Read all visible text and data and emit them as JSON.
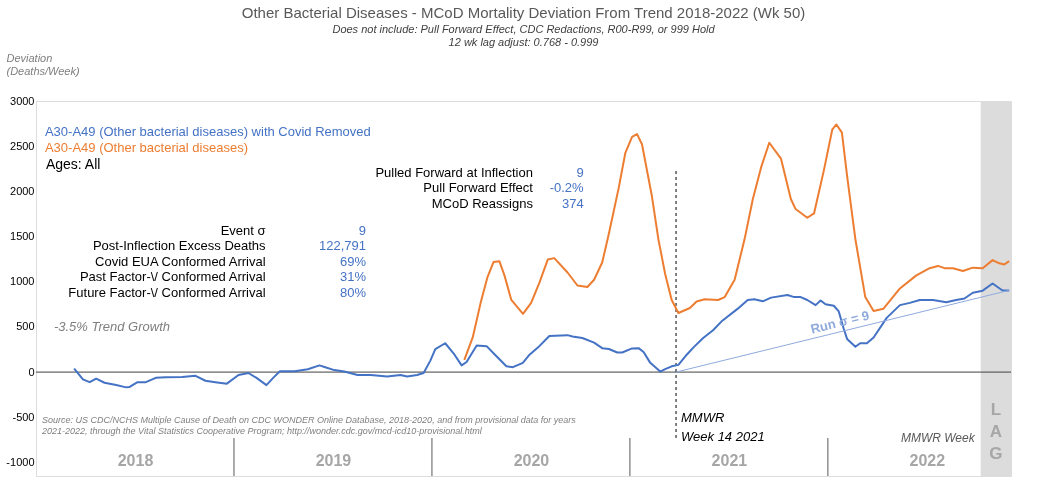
{
  "chart_data": {
    "type": "line",
    "title": "Other Bacterial Diseases - MCoD Mortality Deviation From Trend  2018-2022 (Wk 50)",
    "subtitle": "Does not include: Pull Forward Effect,  CDC Redactions, R00-R99, or 999 Hold\n12 wk lag adjust: 0.768 - 0.999",
    "xlabel": "MMWR Week",
    "ylabel": "Deviation\n(Deaths/Week)",
    "xlim": [
      2018,
      2022.925
    ],
    "xticks": [
      {
        "value": 2018.5,
        "label": "2018"
      },
      {
        "value": 2019.5,
        "label": "2019"
      },
      {
        "value": 2020.5,
        "label": "2020"
      },
      {
        "value": 2021.5,
        "label": "2021"
      },
      {
        "value": 2022.5,
        "label": "2022"
      }
    ],
    "ylim": [
      -1150,
      3000
    ],
    "yticks": [
      -1000,
      -500,
      0,
      500,
      1000,
      1500,
      2000,
      2500,
      3000
    ],
    "grid": false,
    "series": [
      {
        "name": "A30-A49 (Other bacterial diseases) with Covid Removed",
        "color": "#4472c4",
        "x": [
          2018.195,
          2018.237,
          2018.271,
          2018.304,
          2018.346,
          2018.405,
          2018.455,
          2018.471,
          2018.513,
          2018.555,
          2018.605,
          2018.655,
          2018.738,
          2018.806,
          2018.856,
          2018.906,
          2018.964,
          2019.023,
          2019.073,
          2019.114,
          2019.164,
          2019.198,
          2019.232,
          2019.307,
          2019.373,
          2019.432,
          2019.457,
          2019.507,
          2019.557,
          2019.624,
          2019.691,
          2019.774,
          2019.841,
          2019.875,
          2019.925,
          2019.958,
          2019.992,
          2020.017,
          2020.067,
          2020.109,
          2020.15,
          2020.175,
          2020.226,
          2020.276,
          2020.326,
          2020.376,
          2020.409,
          2020.459,
          2020.493,
          2020.535,
          2020.593,
          2020.685,
          2020.71,
          2020.76,
          2020.819,
          2020.86,
          2020.894,
          2020.936,
          2020.961,
          2021.011,
          2021.044,
          2021.069,
          2021.103,
          2021.153,
          2021.178,
          2021.211,
          2021.245,
          2021.287,
          2021.32,
          2021.37,
          2021.42,
          2021.462,
          2021.545,
          2021.595,
          2021.629,
          2021.671,
          2021.713,
          2021.796,
          2021.83,
          2021.863,
          2021.896,
          2021.938,
          2021.963,
          2021.988,
          2022.03,
          2022.055,
          2022.08,
          2022.097,
          2022.139,
          2022.163,
          2022.197,
          2022.231,
          2022.297,
          2022.364,
          2022.414,
          2022.464,
          2022.531,
          2022.598,
          2022.648,
          2022.69,
          2022.732,
          2022.782,
          2022.832,
          2022.882,
          2022.912
        ],
        "values": [
          32,
          -80,
          -112,
          -73,
          -118,
          -144,
          -169,
          -166,
          -112,
          -112,
          -64,
          -58,
          -54,
          -41,
          -96,
          -112,
          -128,
          -32,
          -10,
          -64,
          -144,
          -64,
          10,
          10,
          32,
          74,
          57,
          22,
          6,
          -32,
          -32,
          -48,
          -32,
          -48,
          -32,
          -10,
          127,
          255,
          319,
          208,
          74,
          112,
          294,
          287,
          176,
          64,
          54,
          102,
          192,
          271,
          399,
          409,
          393,
          377,
          326,
          265,
          255,
          217,
          217,
          262,
          265,
          223,
          102,
          6,
          32,
          64,
          80,
          192,
          271,
          377,
          463,
          559,
          702,
          798,
          805,
          783,
          824,
          853,
          830,
          830,
          798,
          741,
          792,
          750,
          734,
          671,
          479,
          367,
          281,
          319,
          319,
          383,
          600,
          741,
          766,
          798,
          798,
          773,
          798,
          814,
          878,
          901,
          980,
          903,
          903
        ]
      },
      {
        "name": "A30-A49 (Other bacterial diseases)",
        "color": "#ed7d31",
        "x": [
          2020.165,
          2020.206,
          2020.246,
          2020.281,
          2020.311,
          2020.341,
          2020.366,
          2020.401,
          2020.46,
          2020.501,
          2020.543,
          2020.585,
          2020.618,
          2020.685,
          2020.735,
          2020.785,
          2020.819,
          2020.86,
          2020.894,
          2020.944,
          2020.977,
          2021.011,
          2021.036,
          2021.061,
          2021.111,
          2021.144,
          2021.178,
          2021.211,
          2021.245,
          2021.303,
          2021.337,
          2021.378,
          2021.445,
          2021.479,
          2021.529,
          2021.579,
          2021.621,
          2021.663,
          2021.704,
          2021.763,
          2021.813,
          2021.837,
          2021.896,
          2021.93,
          2021.98,
          2022.022,
          2022.043,
          2022.071,
          2022.097,
          2022.139,
          2022.189,
          2022.231,
          2022.281,
          2022.364,
          2022.447,
          2022.514,
          2022.556,
          2022.589,
          2022.632,
          2022.682,
          2022.732,
          2022.782,
          2022.832,
          2022.866,
          2022.891,
          2022.912
        ],
        "values": [
          144,
          383,
          766,
          1054,
          1217,
          1226,
          1073,
          798,
          645,
          766,
          990,
          1245,
          1261,
          1102,
          958,
          942,
          1022,
          1213,
          1533,
          2044,
          2427,
          2602,
          2634,
          2522,
          1948,
          1469,
          1085,
          798,
          654,
          709,
          782,
          805,
          798,
          830,
          1022,
          1469,
          1916,
          2268,
          2538,
          2363,
          1916,
          1804,
          1708,
          1756,
          2235,
          2682,
          2740,
          2650,
          2171,
          1469,
          830,
          677,
          702,
          926,
          1070,
          1150,
          1175,
          1150,
          1150,
          1118,
          1156,
          1150,
          1239,
          1204,
          1191,
          1223
        ]
      },
      {
        "name": "Run σ = 9",
        "color": "#8faadc",
        "type": "line",
        "x": [
          2021.233,
          2022.912
        ],
        "values": [
          0,
          903
        ]
      }
    ],
    "ref_lines": [
      {
        "axis": "y",
        "value": 0,
        "color": "#404040"
      },
      {
        "axis": "x",
        "value": 2019,
        "color": "#595959"
      },
      {
        "axis": "x",
        "value": 2020,
        "color": "#595959"
      },
      {
        "axis": "x",
        "value": 2021,
        "color": "#595959"
      },
      {
        "axis": "x",
        "value": 2022,
        "color": "#595959"
      },
      {
        "axis": "x",
        "value": 2021.233,
        "label": "MMWR\nWeek 14 2021",
        "color": "#000000",
        "line_style": "dashed"
      }
    ],
    "bands": [
      {
        "axis": "x",
        "from": 2022.772,
        "to": 2022.925,
        "label": "LAG",
        "color": "#dcdcdc"
      }
    ],
    "annotations": [
      "Ages: All",
      "Pulled Forward at Inflection",
      "9",
      "Pull Forward Effect",
      "-0.2%",
      "MCoD Reassigns",
      "374",
      "Event σ",
      "9",
      "Post-Inflection Excess Deaths",
      "122,791",
      "Covid EUA Conformed Arrival",
      "69%",
      "Past Factor-\\/ Conformed Arrival",
      "31%",
      "Future Factor-\\/ Conformed Arrival",
      "80%",
      "-3.5% Trend Growth",
      "Source: US CDC/NCHS Multiple Cause of Death on CDC WONDER Online Database, 2018-2020, and from provisional data for years",
      "2021-2022, through the Vital Statistics Cooperative Program; http://wonder.cdc.gov/mcd-icd10-provisional.html"
    ]
  }
}
